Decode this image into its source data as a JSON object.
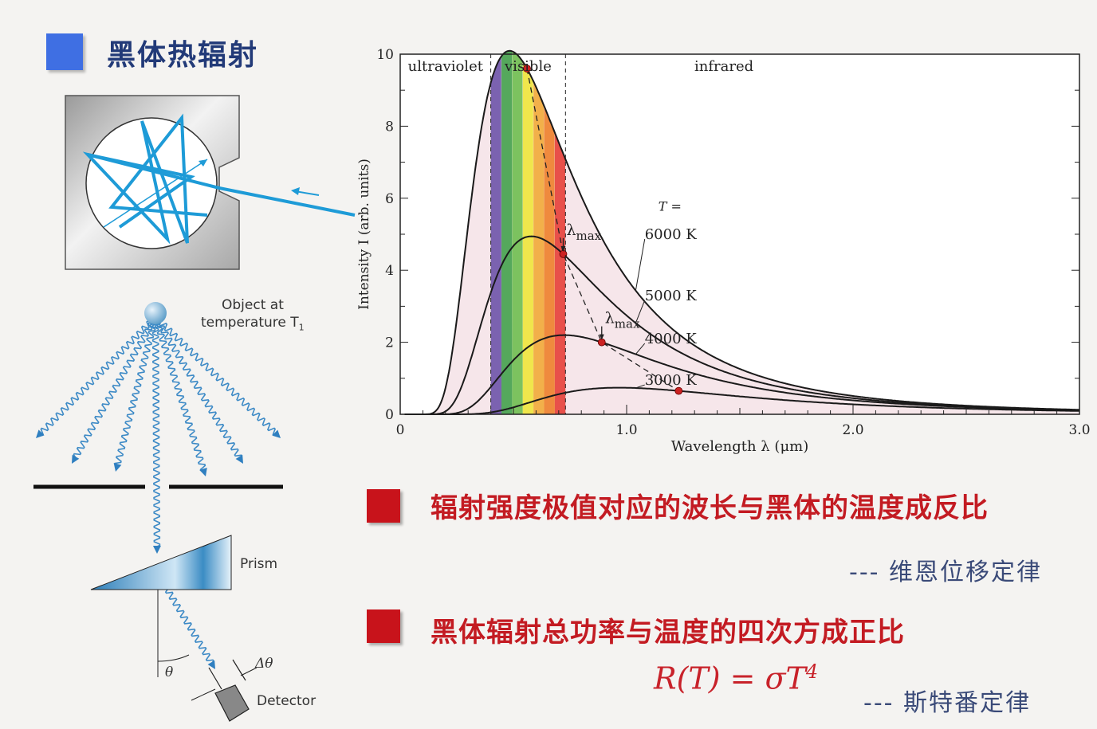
{
  "slide": {
    "title": "黑体热辐射",
    "point1": "辐射强度极值对应的波长与黑体的温度成反比",
    "law1": "--- 维恩位移定律",
    "point2": "黑体辐射总功率与温度的四次方成正比",
    "formula": "R(T) = σT",
    "formula_exp": "4",
    "law2": "--- 斯特番定律",
    "accent_blue": "#3f6fe3",
    "accent_red": "#c8131b"
  },
  "diagram": {
    "object_label_line1": "Object at",
    "object_label_line2": "temperature T",
    "object_label_sub": "1",
    "prism_label": "Prism",
    "detector_label": "Detector",
    "theta_label": "θ",
    "dtheta_label": "Δθ"
  },
  "chart_data": {
    "type": "line",
    "xlabel": "Wavelength  λ  (μm)",
    "ylabel": "Intensity  I  (arb. units)",
    "xlim": [
      0,
      3.0
    ],
    "ylim": [
      0,
      10
    ],
    "x_ticks": [
      "0",
      "1.0",
      "2.0",
      "3.0"
    ],
    "y_ticks": [
      "0",
      "2",
      "4",
      "6",
      "8",
      "10"
    ],
    "regions": [
      {
        "label": "ultraviolet",
        "from": 0,
        "to": 0.4
      },
      {
        "label": "visible",
        "from": 0.4,
        "to": 0.73
      },
      {
        "label": "infrared",
        "from": 0.73,
        "to": 3.0
      }
    ],
    "temperature_label": "T =",
    "series": [
      {
        "name": "6000 K",
        "T": 6000,
        "peak_lambda": 0.56,
        "peak_value": 9.6
      },
      {
        "name": "5000 K",
        "T": 5000,
        "peak_lambda": 0.72,
        "peak_value": 4.45
      },
      {
        "name": "4000 K",
        "T": 4000,
        "peak_lambda": 0.89,
        "peak_value": 2.0
      },
      {
        "name": "3000 K",
        "T": 3000,
        "peak_lambda": 1.23,
        "peak_value": 0.65
      }
    ],
    "lambda_max_label": "λ",
    "lambda_max_sub": "max",
    "spectrum_colors": [
      "#7b62b0",
      "#55a85c",
      "#7cc25f",
      "#f0e64c",
      "#f2b04a",
      "#ef8a3e",
      "#e8504a"
    ],
    "curve_color": "#1a1a1a",
    "shade_color": "#f6e6ea",
    "peak_marker_color": "#cc2222",
    "grid": false
  }
}
